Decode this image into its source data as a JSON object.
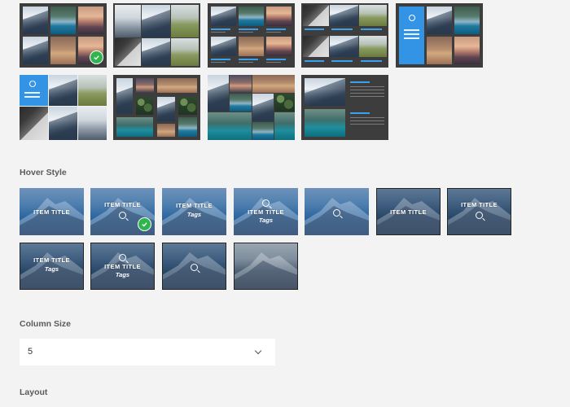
{
  "layout_section": {
    "selected_index": 1,
    "accent_color": "#3393e5"
  },
  "hover_section": {
    "label": "Hover Style",
    "selected_index": 1,
    "tiles": [
      {
        "title": "ITEM TITLE",
        "tags": "",
        "zoom": false
      },
      {
        "title": "ITEM TITLE",
        "tags": "",
        "zoom": true
      },
      {
        "title": "ITEM TITLE",
        "tags": "Tags",
        "zoom": false
      },
      {
        "title": "ITEM TITLE",
        "tags": "Tags",
        "zoom": true
      },
      {
        "title": "",
        "tags": "",
        "zoom": true
      },
      {
        "title": "ITEM TITLE",
        "tags": "",
        "zoom": false
      },
      {
        "title": "ITEM TITLE",
        "tags": "",
        "zoom": true
      },
      {
        "title": "ITEM TITLE",
        "tags": "Tags",
        "zoom": false
      },
      {
        "title": "ITEM TITLE",
        "tags": "Tags",
        "zoom": true
      },
      {
        "title": "",
        "tags": "",
        "zoom": true
      },
      {
        "title": "",
        "tags": "",
        "zoom": false
      }
    ]
  },
  "column_size": {
    "label": "Column Size",
    "value": "5"
  },
  "layout_label": "Layout",
  "colors": {
    "check_green": "#2fb54d",
    "tile_blue": "#2f68a0",
    "page_bg": "#f3f3f3"
  }
}
